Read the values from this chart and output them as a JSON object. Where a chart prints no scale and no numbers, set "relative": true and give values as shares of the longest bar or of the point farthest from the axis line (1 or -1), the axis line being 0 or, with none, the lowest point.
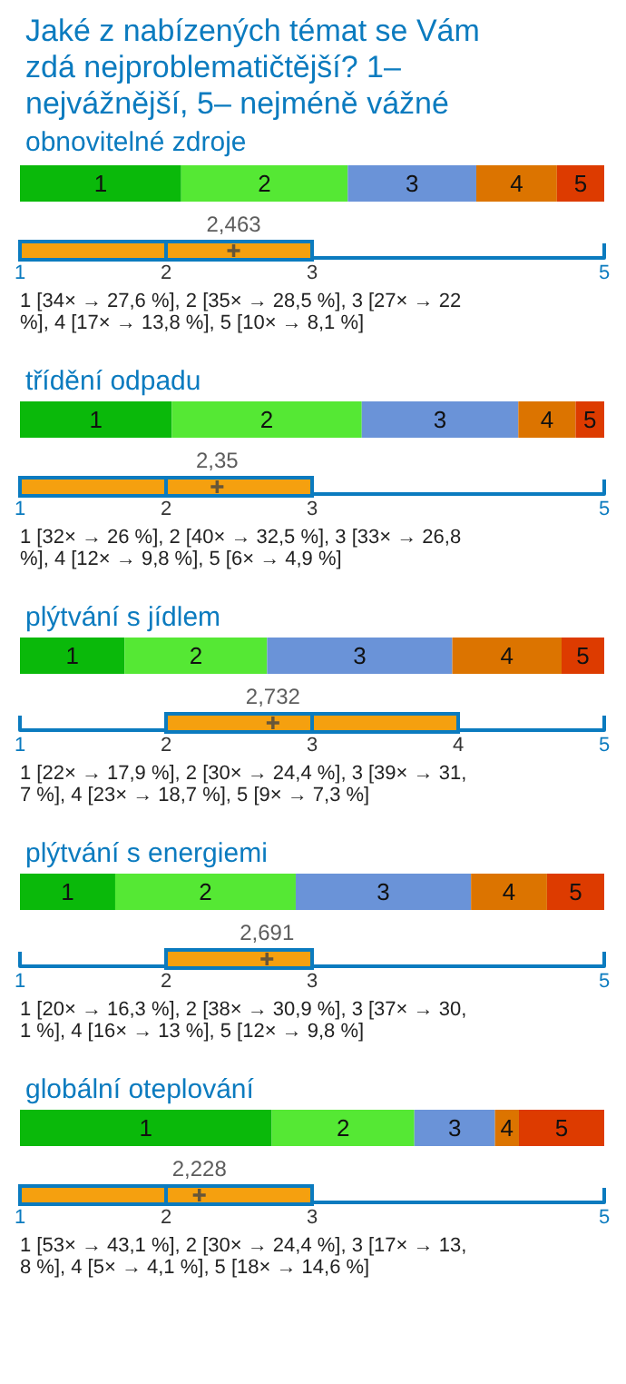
{
  "chart_data": [
    {
      "type": "bar",
      "orientation": "horizontal",
      "stacked": true,
      "relative": true,
      "title": "Jaké z nabízených témat se Vám zdá nejproblematičtější? 1– nejvážnější, 5– nejméně vážné",
      "subtitle": "obnovitelné zdroje",
      "categories": [
        null
      ],
      "series": [
        {
          "name": "1",
          "color": "#0ab90a",
          "values": [
            0.276
          ]
        },
        {
          "name": "2",
          "color": "#55e834",
          "values": [
            0.285
          ]
        },
        {
          "name": "3",
          "color": "#6a93d8",
          "values": [
            0.22
          ]
        },
        {
          "name": "4",
          "color": "#dc7400",
          "values": [
            0.138
          ]
        },
        {
          "name": "5",
          "color": "#dd3b00",
          "values": [
            0.081
          ]
        }
      ]
    },
    {
      "type": "box",
      "orientation": "horizontal",
      "categories": [
        null
      ],
      "color": "#f5a00f",
      "boxes": [
        {
          "low": 1,
          "q1": 1,
          "median": 2,
          "q3": 3,
          "high": 3,
          "mean": 2.463
        }
      ],
      "xlim": [
        1,
        5
      ],
      "xticks": [
        1,
        2,
        3,
        5
      ],
      "annotations": [
        "2,463",
        "1 [34× → 27,6 %], 2 [35× → 28,5 %], 3 [27× → 22 %], 4 [17× → 13,8 %], 5 [10× → 8,1 %]"
      ]
    },
    {
      "type": "bar",
      "orientation": "horizontal",
      "stacked": true,
      "relative": true,
      "title": "třídění odpadu",
      "categories": [
        null
      ],
      "series": [
        {
          "name": "1",
          "color": "#0ab90a",
          "values": [
            0.26
          ]
        },
        {
          "name": "2",
          "color": "#55e834",
          "values": [
            0.325
          ]
        },
        {
          "name": "3",
          "color": "#6a93d8",
          "values": [
            0.268
          ]
        },
        {
          "name": "4",
          "color": "#dc7400",
          "values": [
            0.098
          ]
        },
        {
          "name": "5",
          "color": "#dd3b00",
          "values": [
            0.049
          ]
        }
      ]
    },
    {
      "type": "box",
      "orientation": "horizontal",
      "categories": [
        null
      ],
      "color": "#f5a00f",
      "boxes": [
        {
          "low": 1,
          "q1": 1,
          "median": 2,
          "q3": 3,
          "high": 3,
          "mean": 2.35
        }
      ],
      "xlim": [
        1,
        5
      ],
      "xticks": [
        1,
        2,
        3,
        5
      ],
      "annotations": [
        "2,35",
        "1 [32× → 26 %], 2 [40× → 32,5 %], 3 [33× → 26,8 %], 4 [12× → 9,8 %], 5 [6× → 4,9 %]"
      ]
    },
    {
      "type": "bar",
      "orientation": "horizontal",
      "stacked": true,
      "relative": true,
      "title": "plýtvání s jídlem",
      "categories": [
        null
      ],
      "series": [
        {
          "name": "1",
          "color": "#0ab90a",
          "values": [
            0.179
          ]
        },
        {
          "name": "2",
          "color": "#55e834",
          "values": [
            0.244
          ]
        },
        {
          "name": "3",
          "color": "#6a93d8",
          "values": [
            0.317
          ]
        },
        {
          "name": "4",
          "color": "#dc7400",
          "values": [
            0.187
          ]
        },
        {
          "name": "5",
          "color": "#dd3b00",
          "values": [
            0.073
          ]
        }
      ]
    },
    {
      "type": "box",
      "orientation": "horizontal",
      "categories": [
        null
      ],
      "color": "#f5a00f",
      "boxes": [
        {
          "low": 2,
          "q1": 2,
          "median": 3,
          "q3": 4,
          "high": 4,
          "mean": 2.732
        }
      ],
      "xlim": [
        1,
        5
      ],
      "xticks": [
        1,
        2,
        3,
        4,
        5
      ],
      "annotations": [
        "2,732",
        "1 [22× → 17,9 %], 2 [30× → 24,4 %], 3 [39× → 31,7 %], 4 [23× → 18,7 %], 5 [9× → 7,3 %]"
      ]
    },
    {
      "type": "bar",
      "orientation": "horizontal",
      "stacked": true,
      "relative": true,
      "title": "plýtvání s energiemi",
      "categories": [
        null
      ],
      "series": [
        {
          "name": "1",
          "color": "#0ab90a",
          "values": [
            0.163
          ]
        },
        {
          "name": "2",
          "color": "#55e834",
          "values": [
            0.309
          ]
        },
        {
          "name": "3",
          "color": "#6a93d8",
          "values": [
            0.3
          ]
        },
        {
          "name": "4",
          "color": "#dc7400",
          "values": [
            0.13
          ]
        },
        {
          "name": "5",
          "color": "#dd3b00",
          "values": [
            0.098
          ]
        }
      ]
    },
    {
      "type": "box",
      "orientation": "horizontal",
      "categories": [
        null
      ],
      "color": "#f5a00f",
      "boxes": [
        {
          "low": 2,
          "q1": 2,
          "median": 3,
          "q3": 3,
          "high": 3,
          "mean": 2.691
        }
      ],
      "xlim": [
        1,
        5
      ],
      "xticks": [
        1,
        2,
        3,
        5
      ],
      "annotations": [
        "2,691",
        "1 [20× → 16,3 %], 2 [38× → 30,9 %], 3 [37× → 30,1 %], 4 [16× → 13 %], 5 [12× → 9,8 %]"
      ]
    },
    {
      "type": "bar",
      "orientation": "horizontal",
      "stacked": true,
      "relative": true,
      "title": "globální oteplování",
      "categories": [
        null
      ],
      "series": [
        {
          "name": "1",
          "color": "#0ab90a",
          "values": [
            0.431
          ]
        },
        {
          "name": "2",
          "color": "#55e834",
          "values": [
            0.244
          ]
        },
        {
          "name": "3",
          "color": "#6a93d8",
          "values": [
            0.138
          ]
        },
        {
          "name": "4",
          "color": "#dc7400",
          "values": [
            0.041
          ]
        },
        {
          "name": "5",
          "color": "#dd3b00",
          "values": [
            0.146
          ]
        }
      ]
    },
    {
      "type": "box",
      "orientation": "horizontal",
      "categories": [
        null
      ],
      "color": "#f5a00f",
      "boxes": [
        {
          "low": 1,
          "q1": 1,
          "median": 2,
          "q3": 3,
          "high": 3,
          "mean": 2.228
        }
      ],
      "xlim": [
        1,
        5
      ],
      "xticks": [
        1,
        2,
        3,
        5
      ],
      "annotations": [
        "2,228",
        "1 [53× → 43,1 %], 2 [30× → 24,4 %], 3 [17× → 13,8 %], 4 [5× → 4,1 %], 5 [18× → 14,6 %]"
      ]
    }
  ]
}
